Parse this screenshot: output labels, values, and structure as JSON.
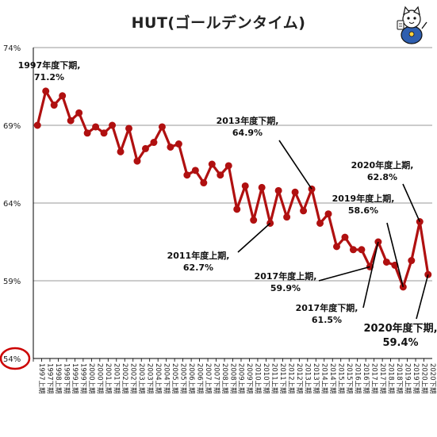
{
  "title": "HUT(ゴールデンタイム)",
  "colors": {
    "line": "#b01010",
    "grid": "#999999",
    "highlight": "#cc0000",
    "annotation_line": "#000000"
  },
  "mascot_icon": "cat-reporter-mascot-icon",
  "chart_data": {
    "type": "line",
    "title": "HUT(ゴールデンタイム)",
    "ylim": [
      54,
      74
    ],
    "yticks": [
      "74%",
      "69%",
      "64%",
      "59%",
      "54%"
    ],
    "highlighted_tick": "54%",
    "grid": "horizontal",
    "x": [
      "1997年度上期",
      "1997年度下期",
      "1998年度上期",
      "1998年度下期",
      "1999年度上期",
      "1999年度下期",
      "2000年度上期",
      "2000年度下期",
      "2001年度上期",
      "2001年度下期",
      "2002年度上期",
      "2002年度下期",
      "2003年度上期",
      "2003年度下期",
      "2004年度上期",
      "2004年度下期",
      "2005年度上期",
      "2005年度下期",
      "2006年度上期",
      "2006年度下期",
      "2007年度上期",
      "2007年度下期",
      "2008年度上期",
      "2008年度下期",
      "2009年度上期",
      "2009年度下期",
      "2010年度上期",
      "2010年度下期",
      "2011年度上期",
      "2011年度下期",
      "2012年度上期",
      "2012年度下期",
      "2013年度上期",
      "2013年度下期",
      "2014年度上期",
      "2014年度下期",
      "2015年度上期",
      "2015年度下期",
      "2016年度上期",
      "2016年度下期",
      "2017年度上期",
      "2017年度下期",
      "2018年度上期",
      "2018年度下期",
      "2019年度上期",
      "2019年度下期",
      "2020年度上期",
      "2020年度下期"
    ],
    "x_tick_years": [
      "1997",
      "1998",
      "1999",
      "2000",
      "2001",
      "2002",
      "2003",
      "2004",
      "2005",
      "2006",
      "2007",
      "2008",
      "2009",
      "2010",
      "2011",
      "2012",
      "2013",
      "2014",
      "2015",
      "2016",
      "2017",
      "2018",
      "2019",
      "2020"
    ],
    "x_tick_halves": [
      "上期",
      "下期"
    ],
    "series": [
      {
        "values": [
          69.0,
          71.2,
          70.3,
          70.9,
          69.3,
          69.8,
          68.5,
          68.9,
          68.5,
          69.0,
          67.3,
          68.8,
          66.7,
          67.5,
          67.9,
          68.9,
          67.6,
          67.8,
          65.8,
          66.1,
          65.3,
          66.5,
          65.8,
          66.4,
          63.6,
          65.1,
          62.9,
          65.0,
          62.7,
          64.8,
          63.1,
          64.7,
          63.5,
          64.9,
          62.7,
          63.3,
          61.2,
          61.8,
          61.0,
          61.0,
          59.9,
          61.5,
          60.2,
          60.0,
          58.6,
          60.3,
          62.8,
          59.4
        ]
      }
    ],
    "annotations": [
      {
        "label": "1997年度下期,",
        "value": "71.2%",
        "index": 1
      },
      {
        "label": "2013年度下期,",
        "value": "64.9%",
        "index": 33
      },
      {
        "label": "2011年度上期,",
        "value": "62.7%",
        "index": 28
      },
      {
        "label": "2017年度上期,",
        "value": "59.9%",
        "index": 40
      },
      {
        "label": "2017年度下期,",
        "value": "61.5%",
        "index": 41
      },
      {
        "label": "2019年度上期,",
        "value": "58.6%",
        "index": 44
      },
      {
        "label": "2020年度上期,",
        "value": "62.8%",
        "index": 46
      },
      {
        "label": "2020年度下期,",
        "value": "59.4%",
        "index": 47
      }
    ]
  }
}
